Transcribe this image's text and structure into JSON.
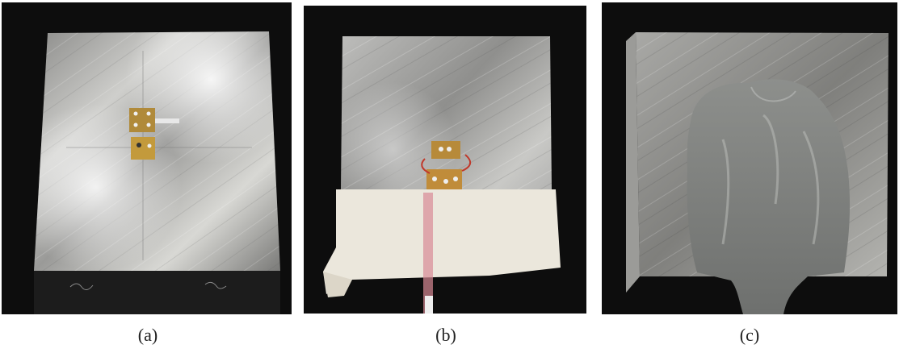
{
  "figure": {
    "panels": [
      {
        "id": "a",
        "caption": "(a)"
      },
      {
        "id": "b",
        "caption": "(b)"
      },
      {
        "id": "c",
        "caption": "(c)"
      }
    ]
  }
}
